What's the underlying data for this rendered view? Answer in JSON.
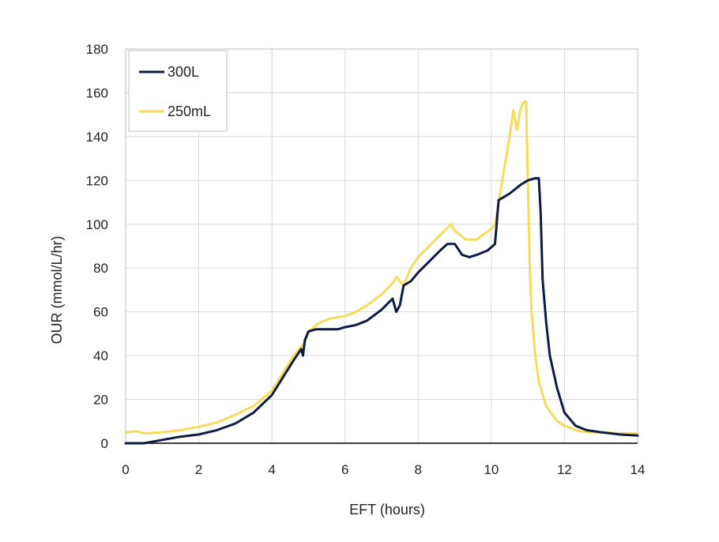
{
  "chart_data": {
    "type": "line",
    "title": "",
    "xlabel": "EFT (hours)",
    "ylabel": "OUR (mmol/L/hr)",
    "xlim": [
      0,
      14
    ],
    "ylim": [
      0,
      180
    ],
    "xticks": [
      0,
      2,
      4,
      6,
      8,
      10,
      12,
      14
    ],
    "yticks": [
      0,
      20,
      40,
      60,
      80,
      100,
      120,
      140,
      160,
      180
    ],
    "grid": true,
    "legend_position": "top-left",
    "series": [
      {
        "name": "300L",
        "color": "#0d1b45",
        "x": [
          0,
          0.5,
          1,
          1.5,
          2,
          2.5,
          3,
          3.5,
          4,
          4.3,
          4.6,
          4.8,
          4.85,
          4.9,
          5.0,
          5.2,
          5.5,
          5.8,
          6.0,
          6.3,
          6.6,
          7.0,
          7.3,
          7.4,
          7.5,
          7.6,
          7.8,
          8.0,
          8.3,
          8.6,
          8.8,
          9.0,
          9.2,
          9.4,
          9.6,
          9.9,
          10.1,
          10.2,
          10.5,
          10.8,
          11.0,
          11.2,
          11.3,
          11.35,
          11.4,
          11.5,
          11.6,
          11.8,
          12.0,
          12.3,
          12.6,
          13.0,
          13.5,
          14.0
        ],
        "y": [
          0,
          0,
          1.5,
          3,
          4,
          6,
          9,
          14,
          22,
          30,
          38,
          43,
          40,
          47,
          51,
          52,
          52,
          52,
          53,
          54,
          56,
          61,
          66,
          60,
          63,
          72,
          74,
          78,
          83,
          88,
          91,
          91,
          86,
          85,
          86,
          88,
          91,
          111,
          114,
          118,
          120,
          121,
          121,
          105,
          75,
          55,
          40,
          25,
          14,
          8,
          6,
          5,
          4,
          3.5
        ]
      },
      {
        "name": "250mL",
        "color": "#f5dc5a",
        "x": [
          0,
          0.3,
          0.5,
          1,
          1.5,
          2,
          2.5,
          3,
          3.5,
          4,
          4.3,
          4.6,
          4.9,
          5.0,
          5.3,
          5.6,
          6.0,
          6.3,
          6.6,
          7.0,
          7.3,
          7.4,
          7.6,
          7.8,
          8.0,
          8.3,
          8.6,
          8.9,
          9.0,
          9.3,
          9.6,
          10.0,
          10.1,
          10.3,
          10.5,
          10.6,
          10.7,
          10.8,
          10.9,
          10.95,
          11.0,
          11.05,
          11.1,
          11.2,
          11.3,
          11.5,
          11.8,
          12.0,
          12.3,
          12.6,
          13.0,
          13.5,
          14.0
        ],
        "y": [
          5,
          5.5,
          4.5,
          5,
          6,
          7.5,
          9.5,
          13,
          17,
          24,
          32,
          40,
          46,
          51,
          55,
          57,
          58,
          60,
          63,
          68,
          73,
          76,
          72,
          80,
          85,
          90,
          95,
          100,
          97,
          93,
          93,
          98,
          100,
          120,
          140,
          152,
          143,
          153,
          156,
          156,
          120,
          80,
          60,
          40,
          28,
          17,
          10,
          8,
          6,
          5,
          5,
          4.5,
          4.5
        ]
      }
    ]
  }
}
